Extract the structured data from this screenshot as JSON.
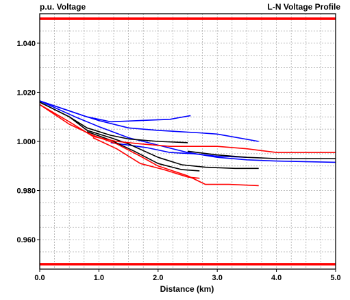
{
  "chart_data": {
    "type": "line",
    "title": "L-N Voltage Profile",
    "ylabel": "p.u. Voltage",
    "xlabel": "Distance (km)",
    "xlim": [
      0.0,
      5.0
    ],
    "ylim": [
      0.948,
      1.052
    ],
    "grid": true,
    "x_ticks": [
      0.0,
      1.0,
      2.0,
      3.0,
      4.0,
      5.0
    ],
    "x_tick_labels": [
      "0.0",
      "1.0",
      "2.0",
      "3.0",
      "4.0",
      "5.0"
    ],
    "y_ticks": [
      0.96,
      0.98,
      1.0,
      1.02,
      1.04
    ],
    "y_tick_labels": [
      "0.960",
      "0.980",
      "1.000",
      "1.020",
      "1.040"
    ],
    "limits": [
      {
        "y": 1.05,
        "color": "#ff0000"
      },
      {
        "y": 0.95,
        "color": "#ff0000"
      }
    ],
    "series": [
      {
        "color": "#0000ff",
        "points": [
          [
            0.0,
            1.0165
          ],
          [
            0.8,
            1.01
          ],
          [
            1.2,
            1.008
          ],
          [
            1.7,
            1.0085
          ],
          [
            2.2,
            1.009
          ],
          [
            2.55,
            1.0105
          ]
        ]
      },
      {
        "color": "#0000ff",
        "points": [
          [
            0.0,
            1.0165
          ],
          [
            0.8,
            1.01
          ],
          [
            1.0,
            1.0085
          ],
          [
            1.5,
            1.0055
          ],
          [
            2.0,
            1.0045
          ],
          [
            2.7,
            1.0035
          ],
          [
            3.0,
            1.003
          ],
          [
            3.7,
            1.0
          ]
        ]
      },
      {
        "color": "#0000ff",
        "points": [
          [
            0.0,
            1.0165
          ],
          [
            0.6,
            1.01
          ],
          [
            1.0,
            1.006
          ],
          [
            1.5,
            1.0015
          ],
          [
            2.0,
            0.9985
          ],
          [
            2.5,
            0.9955
          ],
          [
            3.0,
            0.9935
          ],
          [
            3.5,
            0.9925
          ],
          [
            4.0,
            0.992
          ],
          [
            5.0,
            0.9915
          ]
        ]
      },
      {
        "color": "#0000ff",
        "points": [
          [
            1.2,
            0.9995
          ],
          [
            1.8,
            0.9975
          ],
          [
            2.2,
            0.9955
          ],
          [
            2.6,
            0.995
          ],
          [
            3.0,
            0.994
          ],
          [
            3.5,
            0.9935
          ]
        ]
      },
      {
        "color": "#000000",
        "points": [
          [
            0.0,
            1.016
          ],
          [
            0.5,
            1.01
          ],
          [
            0.8,
            1.0055
          ],
          [
            1.2,
            1.0025
          ],
          [
            1.5,
            1.001
          ],
          [
            2.0,
            1.0
          ],
          [
            2.5,
            0.9995
          ]
        ]
      },
      {
        "color": "#000000",
        "points": [
          [
            0.0,
            1.016
          ],
          [
            0.5,
            1.01
          ],
          [
            0.8,
            1.0045
          ],
          [
            1.2,
            1.0015
          ],
          [
            1.5,
            0.999
          ],
          [
            2.0,
            0.9935
          ],
          [
            2.4,
            0.9905
          ],
          [
            2.8,
            0.9895
          ],
          [
            3.3,
            0.989
          ],
          [
            3.7,
            0.989
          ]
        ]
      },
      {
        "color": "#000000",
        "points": [
          [
            0.8,
            1.004
          ],
          [
            1.2,
            1.0005
          ],
          [
            1.6,
            0.996
          ],
          [
            2.0,
            0.991
          ],
          [
            2.4,
            0.9885
          ],
          [
            2.7,
            0.988
          ]
        ]
      },
      {
        "color": "#000000",
        "points": [
          [
            2.5,
            0.996
          ],
          [
            3.0,
            0.9945
          ],
          [
            3.5,
            0.9935
          ],
          [
            4.0,
            0.993
          ],
          [
            5.0,
            0.993
          ]
        ]
      },
      {
        "color": "#ff0000",
        "points": [
          [
            0.0,
            1.015
          ],
          [
            0.5,
            1.008
          ],
          [
            0.9,
            1.002
          ],
          [
            1.3,
            1.0
          ],
          [
            1.7,
            0.999
          ],
          [
            2.2,
            0.998
          ],
          [
            3.0,
            0.998
          ],
          [
            3.5,
            0.997
          ],
          [
            4.0,
            0.9955
          ],
          [
            5.0,
            0.9955
          ]
        ]
      },
      {
        "color": "#ff0000",
        "points": [
          [
            0.0,
            1.015
          ],
          [
            0.5,
            1.007
          ],
          [
            0.9,
            1.0025
          ],
          [
            1.3,
            0.999
          ],
          [
            1.7,
            0.994
          ],
          [
            2.0,
            0.99
          ],
          [
            2.5,
            0.986
          ],
          [
            2.8,
            0.9825
          ],
          [
            3.2,
            0.9825
          ],
          [
            3.7,
            0.982
          ]
        ]
      },
      {
        "color": "#ff0000",
        "points": [
          [
            0.9,
            1.0015
          ],
          [
            1.3,
            0.997
          ],
          [
            1.7,
            0.991
          ],
          [
            2.1,
            0.9885
          ],
          [
            2.5,
            0.9855
          ],
          [
            2.7,
            0.985
          ]
        ]
      }
    ]
  }
}
